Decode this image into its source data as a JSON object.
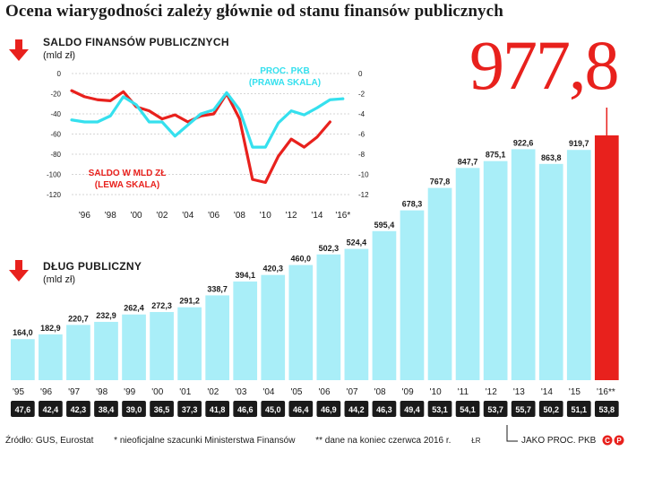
{
  "title": "Ocena wiarygodności zależy głównie od stanu finansów publicznych",
  "big_value": "977,8",
  "colors": {
    "bar": "#a9eef8",
    "highlight": "#e8211d",
    "pct_line": "#35e0ee",
    "saldo_line": "#e8211d",
    "label_box": "#1a1a1a"
  },
  "footer": {
    "source": "Źródło: GUS, Eurostat",
    "note_star": "* nieoficjalne szacunki Ministerstwa Finansów",
    "note_double_star": "** dane na koniec czerwca 2016 r.",
    "initials": "ŁR",
    "pct_note": "JAKO PROC. PKB"
  },
  "chart_data": [
    {
      "type": "line",
      "title": "SALDO FINANSÓW PUBLICZNYCH",
      "unit": "(mld zł)",
      "x": [
        1995,
        1996,
        1997,
        1998,
        1999,
        2000,
        2001,
        2002,
        2003,
        2004,
        2005,
        2006,
        2007,
        2008,
        2009,
        2010,
        2011,
        2012,
        2013,
        2014,
        2015,
        2016
      ],
      "xticks": [
        "'96",
        "'98",
        "'00",
        "'02",
        "'04",
        "'06",
        "'08",
        "'10",
        "'12",
        "'14",
        "'16*"
      ],
      "xtick_values": [
        1996,
        1998,
        2000,
        2002,
        2004,
        2006,
        2008,
        2010,
        2012,
        2014,
        2016
      ],
      "left_axis": {
        "ticks": [
          "0",
          "-20",
          "-40",
          "-60",
          "-80",
          "-100",
          "-120"
        ],
        "range": [
          -120,
          0
        ]
      },
      "right_axis": {
        "ticks": [
          "0",
          "-2",
          "-4",
          "-6",
          "-8",
          "-10",
          "-12"
        ],
        "range": [
          -12,
          0
        ]
      },
      "series": [
        {
          "name": "SALDO W MLD ZŁ (LEWA SKALA)",
          "axis": "left",
          "x": [
            1995,
            1996,
            1997,
            1998,
            1999,
            2000,
            2001,
            2002,
            2003,
            2004,
            2005,
            2006,
            2007,
            2008,
            2009,
            2010,
            2011,
            2012,
            2013,
            2014,
            2015
          ],
          "values": [
            -17,
            -23,
            -26,
            -27,
            -18,
            -33,
            -37,
            -45,
            -41,
            -48,
            -42,
            -40,
            -20,
            -45,
            -105,
            -108,
            -82,
            -65,
            -73,
            -63,
            -48
          ]
        },
        {
          "name": "PROC. PKB (PRAWA SKALA)",
          "axis": "right",
          "x": [
            1995,
            1996,
            1997,
            1998,
            1999,
            2000,
            2001,
            2002,
            2003,
            2004,
            2005,
            2006,
            2007,
            2008,
            2009,
            2010,
            2011,
            2012,
            2013,
            2014,
            2015,
            2016
          ],
          "values": [
            -4.6,
            -4.8,
            -4.8,
            -4.2,
            -2.3,
            -3.1,
            -4.8,
            -4.8,
            -6.2,
            -5.1,
            -4.0,
            -3.6,
            -1.9,
            -3.6,
            -7.3,
            -7.3,
            -4.9,
            -3.7,
            -4.1,
            -3.4,
            -2.6,
            -2.5
          ]
        }
      ]
    },
    {
      "type": "bar",
      "title": "DŁUG PUBLICZNY",
      "unit": "(mld zł)",
      "categories": [
        "'95",
        "'96",
        "'97",
        "'98",
        "'99",
        "'00",
        "'01",
        "'02",
        "'03",
        "'04",
        "'05",
        "'06",
        "'07",
        "'08",
        "'09",
        "'10",
        "'11",
        "'12",
        "'13",
        "'14",
        "'15",
        "'16**"
      ],
      "values": [
        164.0,
        182.9,
        220.7,
        232.9,
        262.4,
        272.3,
        291.2,
        338.7,
        394.1,
        420.3,
        460.0,
        502.3,
        524.4,
        595.4,
        678.3,
        767.8,
        847.7,
        875.1,
        922.6,
        863.8,
        919.7,
        977.8
      ],
      "value_labels": [
        "164,0",
        "182,9",
        "220,7",
        "232,9",
        "262,4",
        "272,3",
        "291,2",
        "338,7",
        "394,1",
        "420,3",
        "460,0",
        "502,3",
        "524,4",
        "595,4",
        "678,3",
        "767,8",
        "847,7",
        "875,1",
        "922,6",
        "863,8",
        "919,7",
        ""
      ],
      "pct_gdp": [
        "47,6",
        "42,4",
        "42,3",
        "38,4",
        "39,0",
        "36,5",
        "37,3",
        "41,8",
        "46,6",
        "45,0",
        "46,4",
        "46,9",
        "44,2",
        "46,3",
        "49,4",
        "53,1",
        "54,1",
        "53,7",
        "55,7",
        "50,2",
        "51,1",
        "53,8"
      ]
    }
  ],
  "line_labels": {
    "pct_line1": "PROC. PKB",
    "pct_line2": "(PRAWA SKALA)",
    "saldo_line1": "SALDO W MLD ZŁ",
    "saldo_line2": "(LEWA SKALA)"
  }
}
